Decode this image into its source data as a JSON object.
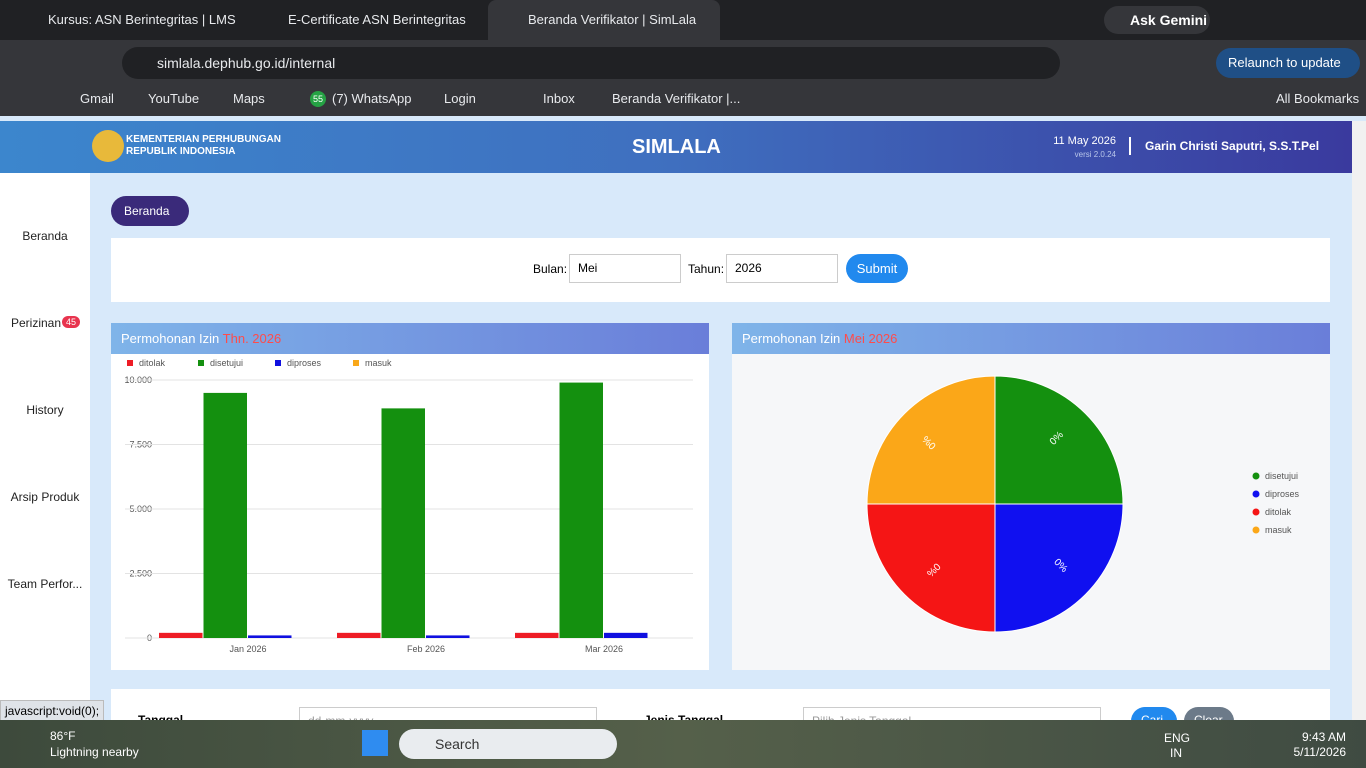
{
  "browser": {
    "tabs": [
      "Kursus: ASN Berintegritas | LMS",
      "E-Certificate ASN Berintegritas",
      "Beranda Verifikator | SimLala"
    ],
    "ask_gemini": "Ask Gemini",
    "url": "simlala.dephub.go.id/internal",
    "relaunch": "Relaunch to update",
    "bookmarks": [
      "Gmail",
      "YouTube",
      "Maps",
      "(7) WhatsApp",
      "Login",
      "Inbox",
      "Beranda Verifikator |..."
    ],
    "whatsapp_badge": "55",
    "all_bookmarks": "All Bookmarks",
    "status": "javascript:void(0);"
  },
  "app": {
    "org": [
      "KEMENTERIAN PERHUBUNGAN",
      "REPUBLIK INDONESIA"
    ],
    "title": "SIMLALA",
    "date": "11 May 2026",
    "version": "versi 2.0.24",
    "user": "Garin Christi Saputri, S.S.T.Pel"
  },
  "sidebar": {
    "items": [
      "Beranda",
      "Perizinan",
      "History",
      "Arsip Produk",
      "Team Perfor..."
    ],
    "badge": 45
  },
  "tab_chip": "Beranda",
  "filter": {
    "bulan_label": "Bulan:",
    "bulan": "Mei",
    "tahun_label": "Tahun:",
    "tahun": "2026",
    "submit": "Submit"
  },
  "chart_data": [
    {
      "type": "bar",
      "title": "Permohonan Izin",
      "subtitle": "Thn. 2026",
      "categories": [
        "Jan 2026",
        "Feb 2026",
        "Mar 2026"
      ],
      "series": [
        {
          "name": "ditolak",
          "color": "#ee1c25",
          "values": [
            200,
            200,
            200
          ]
        },
        {
          "name": "disetujui",
          "color": "#14900f",
          "values": [
            9500,
            8900,
            9900
          ]
        },
        {
          "name": "diproses",
          "color": "#1010e0",
          "values": [
            100,
            100,
            200
          ]
        },
        {
          "name": "masuk",
          "color": "#f9a81a",
          "values": [
            0,
            0,
            0
          ]
        }
      ],
      "ylim": [
        0,
        10000
      ],
      "yticks": [
        0,
        {
          "value": 2500,
          "label": "2.500"
        },
        {
          "value": 5000,
          "label": "5.000"
        },
        {
          "value": 7500,
          "label": "7.500"
        },
        {
          "value": 10000,
          "label": "10.000"
        }
      ],
      "grid": true,
      "legend": "top"
    },
    {
      "type": "pie",
      "title": "Permohonan Izin",
      "subtitle": "Mei 2026",
      "categories": [
        "disetujui",
        "diproses",
        "ditolak",
        "masuk"
      ],
      "colors": [
        "#14900f",
        "#1010f0",
        "#f51515",
        "#fba718"
      ],
      "values": [
        0,
        0,
        0,
        0
      ],
      "value_labels": [
        "0%",
        "0%",
        "0%",
        "0%"
      ],
      "legend": "right"
    }
  ],
  "search_form": {
    "tanggal": "Tanggal",
    "tanggal_placeholder": "dd-mm-yyyy",
    "jenis": "Jenis Tanggal",
    "jenis_placeholder": "Pilih Jenis Tanggal",
    "cari": "Cari",
    "clear": "Clear"
  },
  "taskbar": {
    "temp": "86°F",
    "weather": "Lightning nearby",
    "search": "Search",
    "lang": [
      "ENG",
      "IN"
    ],
    "time": "9:43 AM",
    "date": "5/11/2026"
  }
}
